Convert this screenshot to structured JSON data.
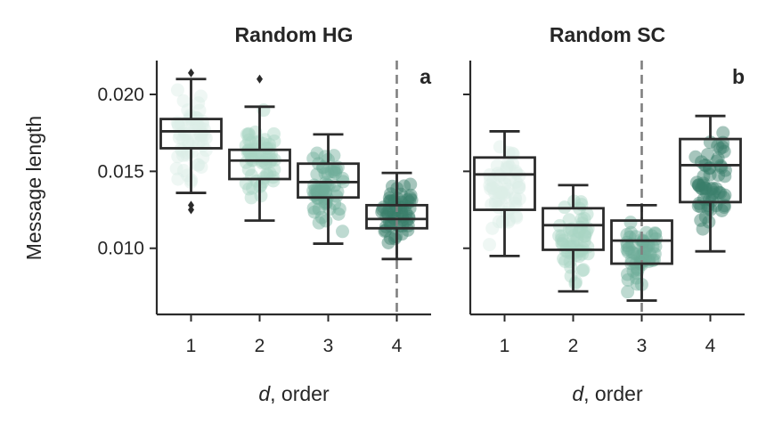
{
  "chart_data": [
    {
      "type": "box",
      "panel_label": "a",
      "title": "Random HG",
      "xlabel_italic": "d",
      "xlabel_rest": ", order",
      "ylabel": "Message length",
      "categories": [
        "1",
        "2",
        "3",
        "4"
      ],
      "ylim": [
        0.0057,
        0.0222
      ],
      "yticks": [
        0.01,
        0.015,
        0.02
      ],
      "ytick_labels": [
        "0.010",
        "0.015",
        "0.020"
      ],
      "dashed_vline_at_category": "4",
      "colors": [
        "#dceee6",
        "#a9d5c4",
        "#6fae98",
        "#3a7f6a"
      ],
      "boxes": [
        {
          "category": "1",
          "whislo": 0.0136,
          "q1": 0.0165,
          "med": 0.0176,
          "q3": 0.0184,
          "whishi": 0.021,
          "fliers": [
            0.0214,
            0.0128,
            0.0125
          ]
        },
        {
          "category": "2",
          "whislo": 0.0118,
          "q1": 0.0145,
          "med": 0.0157,
          "q3": 0.0164,
          "whishi": 0.0192,
          "fliers": [
            0.021
          ]
        },
        {
          "category": "3",
          "whislo": 0.0103,
          "q1": 0.0133,
          "med": 0.0143,
          "q3": 0.0155,
          "whishi": 0.0174,
          "fliers": []
        },
        {
          "category": "4",
          "whislo": 0.0093,
          "q1": 0.0113,
          "med": 0.0119,
          "q3": 0.0128,
          "whishi": 0.0149,
          "fliers": []
        }
      ]
    },
    {
      "type": "box",
      "panel_label": "b",
      "title": "Random SC",
      "xlabel_italic": "d",
      "xlabel_rest": ", order",
      "categories": [
        "1",
        "2",
        "3",
        "4"
      ],
      "ylim": [
        0.0057,
        0.0222
      ],
      "dashed_vline_at_category": "3",
      "colors": [
        "#dceee6",
        "#a9d5c4",
        "#6fae98",
        "#3a7f6a"
      ],
      "boxes": [
        {
          "category": "1",
          "whislo": 0.0095,
          "q1": 0.0125,
          "med": 0.0148,
          "q3": 0.0159,
          "whishi": 0.0176,
          "fliers": []
        },
        {
          "category": "2",
          "whislo": 0.0072,
          "q1": 0.0099,
          "med": 0.0115,
          "q3": 0.0126,
          "whishi": 0.0141,
          "fliers": []
        },
        {
          "category": "3",
          "whislo": 0.0066,
          "q1": 0.009,
          "med": 0.0105,
          "q3": 0.0118,
          "whishi": 0.0128,
          "fliers": []
        },
        {
          "category": "4",
          "whislo": 0.0098,
          "q1": 0.013,
          "med": 0.0154,
          "q3": 0.0171,
          "whishi": 0.0186,
          "fliers": []
        }
      ]
    }
  ]
}
